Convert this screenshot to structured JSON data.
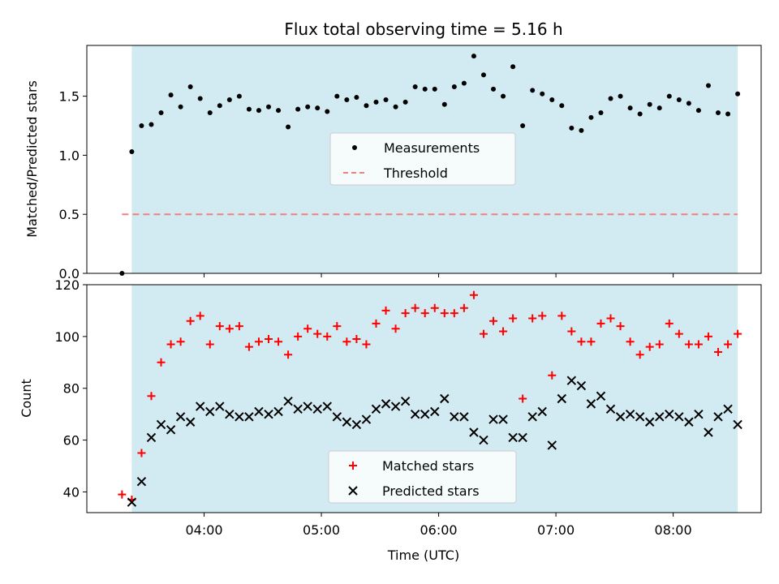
{
  "chart_data": [
    {
      "type": "scatter",
      "title": "Flux total observing time = 5.16 h",
      "ylabel": "Matched/Predicted stars",
      "xlabel": "",
      "ylim": [
        0,
        1.93
      ],
      "yticks": [
        "0.0",
        "0.5",
        "1.0",
        "1.5"
      ],
      "ytick_values": [
        0,
        0.5,
        1.0,
        1.5
      ],
      "grid": false,
      "legend_position": "center",
      "shaded_region": {
        "start": "03:23",
        "end": "08:33",
        "color": "#add8e6"
      },
      "threshold": {
        "value": 0.5,
        "start": "03:18",
        "end": "08:33",
        "color": "#f08080"
      },
      "series": [
        {
          "name": "Measurements",
          "marker": "dot",
          "color": "#000000",
          "x": [
            "03:18",
            "03:23",
            "03:28",
            "03:33",
            "03:38",
            "03:43",
            "03:48",
            "03:53",
            "03:58",
            "04:03",
            "04:08",
            "04:13",
            "04:18",
            "04:23",
            "04:28",
            "04:33",
            "04:38",
            "04:43",
            "04:48",
            "04:53",
            "04:58",
            "05:03",
            "05:08",
            "05:13",
            "05:18",
            "05:23",
            "05:28",
            "05:33",
            "05:38",
            "05:43",
            "05:48",
            "05:53",
            "05:58",
            "06:03",
            "06:08",
            "06:13",
            "06:18",
            "06:23",
            "06:28",
            "06:33",
            "06:38",
            "06:43",
            "06:48",
            "06:53",
            "06:58",
            "07:03",
            "07:08",
            "07:13",
            "07:18",
            "07:23",
            "07:28",
            "07:33",
            "07:38",
            "07:43",
            "07:48",
            "07:53",
            "07:58",
            "08:03",
            "08:08",
            "08:13",
            "08:18",
            "08:23",
            "08:28",
            "08:33"
          ],
          "y": [
            0.0,
            1.03,
            1.25,
            1.26,
            1.36,
            1.51,
            1.41,
            1.58,
            1.48,
            1.36,
            1.42,
            1.47,
            1.5,
            1.39,
            1.38,
            1.41,
            1.38,
            1.24,
            1.39,
            1.41,
            1.4,
            1.37,
            1.5,
            1.47,
            1.49,
            1.42,
            1.45,
            1.47,
            1.41,
            1.45,
            1.58,
            1.56,
            1.56,
            1.43,
            1.58,
            1.61,
            1.84,
            1.68,
            1.56,
            1.5,
            1.75,
            1.25,
            1.55,
            1.52,
            1.47,
            1.42,
            1.23,
            1.21,
            1.32,
            1.36,
            1.48,
            1.5,
            1.4,
            1.35,
            1.43,
            1.4,
            1.5,
            1.47,
            1.44,
            1.38,
            1.59,
            1.36,
            1.35,
            1.52
          ]
        }
      ],
      "legend": [
        {
          "label": "Measurements",
          "marker": "dot",
          "color": "#000000"
        },
        {
          "label": "Threshold",
          "marker": "dashed-line",
          "color": "#f08080"
        }
      ]
    },
    {
      "type": "scatter",
      "xlabel": "Time (UTC)",
      "ylabel": "Count",
      "ylim": [
        32,
        120
      ],
      "yticks": [
        "40",
        "60",
        "80",
        "100",
        "120"
      ],
      "ytick_values": [
        40,
        60,
        80,
        100,
        120
      ],
      "xlim": [
        "03:00",
        "08:45"
      ],
      "xticks": [
        "04:00",
        "05:00",
        "06:00",
        "07:00",
        "08:00"
      ],
      "grid": false,
      "legend_position": "lower center",
      "shaded_region": {
        "start": "03:23",
        "end": "08:33",
        "color": "#add8e6"
      },
      "series": [
        {
          "name": "Matched stars",
          "marker": "plus",
          "color": "#ff0000",
          "x": [
            "03:18",
            "03:23",
            "03:28",
            "03:33",
            "03:38",
            "03:43",
            "03:48",
            "03:53",
            "03:58",
            "04:03",
            "04:08",
            "04:13",
            "04:18",
            "04:23",
            "04:28",
            "04:33",
            "04:38",
            "04:43",
            "04:48",
            "04:53",
            "04:58",
            "05:03",
            "05:08",
            "05:13",
            "05:18",
            "05:23",
            "05:28",
            "05:33",
            "05:38",
            "05:43",
            "05:48",
            "05:53",
            "05:58",
            "06:03",
            "06:08",
            "06:13",
            "06:18",
            "06:23",
            "06:28",
            "06:33",
            "06:38",
            "06:43",
            "06:48",
            "06:53",
            "06:58",
            "07:03",
            "07:08",
            "07:13",
            "07:18",
            "07:23",
            "07:28",
            "07:33",
            "07:38",
            "07:43",
            "07:48",
            "07:53",
            "07:58",
            "08:03",
            "08:08",
            "08:13",
            "08:18",
            "08:23",
            "08:28",
            "08:33"
          ],
          "y": [
            39,
            37,
            55,
            77,
            90,
            97,
            98,
            106,
            108,
            97,
            104,
            103,
            104,
            96,
            98,
            99,
            98,
            93,
            100,
            103,
            101,
            100,
            104,
            98,
            99,
            97,
            105,
            110,
            103,
            109,
            111,
            109,
            111,
            109,
            109,
            111,
            116,
            101,
            106,
            102,
            107,
            76,
            107,
            108,
            85,
            108,
            102,
            98,
            98,
            105,
            107,
            104,
            98,
            93,
            96,
            97,
            105,
            101,
            97,
            97,
            100,
            94,
            97,
            101
          ]
        },
        {
          "name": "Predicted stars",
          "marker": "x",
          "color": "#000000",
          "x": [
            "03:23",
            "03:28",
            "03:33",
            "03:38",
            "03:43",
            "03:48",
            "03:53",
            "03:58",
            "04:03",
            "04:08",
            "04:13",
            "04:18",
            "04:23",
            "04:28",
            "04:33",
            "04:38",
            "04:43",
            "04:48",
            "04:53",
            "04:58",
            "05:03",
            "05:08",
            "05:13",
            "05:18",
            "05:23",
            "05:28",
            "05:33",
            "05:38",
            "05:43",
            "05:48",
            "05:53",
            "05:58",
            "06:03",
            "06:08",
            "06:13",
            "06:18",
            "06:23",
            "06:28",
            "06:33",
            "06:38",
            "06:43",
            "06:48",
            "06:53",
            "06:58",
            "07:03",
            "07:08",
            "07:13",
            "07:18",
            "07:23",
            "07:28",
            "07:33",
            "07:38",
            "07:43",
            "07:48",
            "07:53",
            "07:58",
            "08:03",
            "08:08",
            "08:13",
            "08:18",
            "08:23",
            "08:28",
            "08:33"
          ],
          "y": [
            36,
            44,
            61,
            66,
            64,
            69,
            67,
            73,
            71,
            73,
            70,
            69,
            69,
            71,
            70,
            71,
            75,
            72,
            73,
            72,
            73,
            69,
            67,
            66,
            68,
            72,
            74,
            73,
            75,
            70,
            70,
            71,
            76,
            69,
            69,
            63,
            60,
            68,
            68,
            61,
            61,
            69,
            71,
            58,
            76,
            83,
            81,
            74,
            77,
            72,
            69,
            70,
            69,
            67,
            69,
            70,
            69,
            67,
            70,
            63,
            69,
            72,
            66
          ]
        }
      ],
      "legend": [
        {
          "label": "Matched stars",
          "marker": "plus",
          "color": "#ff0000"
        },
        {
          "label": "Predicted stars",
          "marker": "x",
          "color": "#000000"
        }
      ]
    }
  ]
}
